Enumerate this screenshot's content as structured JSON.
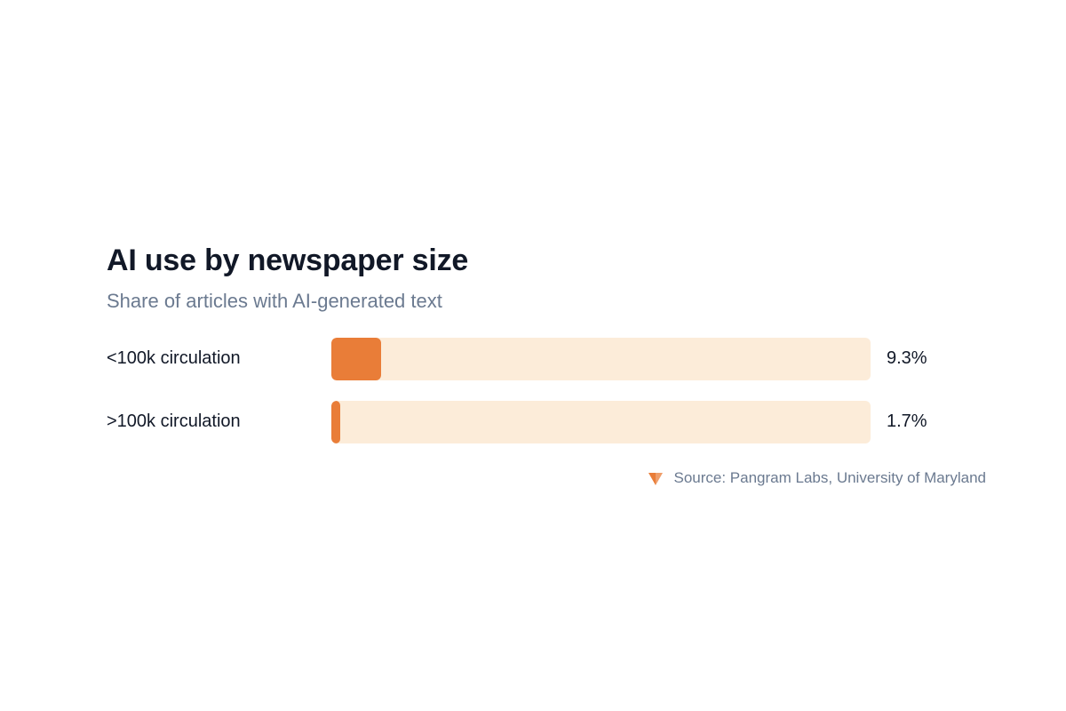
{
  "chart_data": {
    "type": "bar",
    "orientation": "horizontal",
    "title": "AI use by newspaper size",
    "subtitle": "Share of articles with AI-generated text",
    "categories": [
      "<100k circulation",
      ">100k circulation"
    ],
    "values": [
      9.3,
      1.7
    ],
    "value_labels": [
      "9.3%",
      "1.7%"
    ],
    "xlim": [
      0,
      100
    ],
    "unit": "%",
    "grid": false,
    "legend": "none"
  },
  "source": {
    "text": "Source: Pangram Labs, University of Maryland",
    "logo_icon": "pangram-logo-icon"
  },
  "colors": {
    "bar_fill": "#e97d38",
    "bar_track": "#fcecd9",
    "logo": "#e97d38"
  }
}
